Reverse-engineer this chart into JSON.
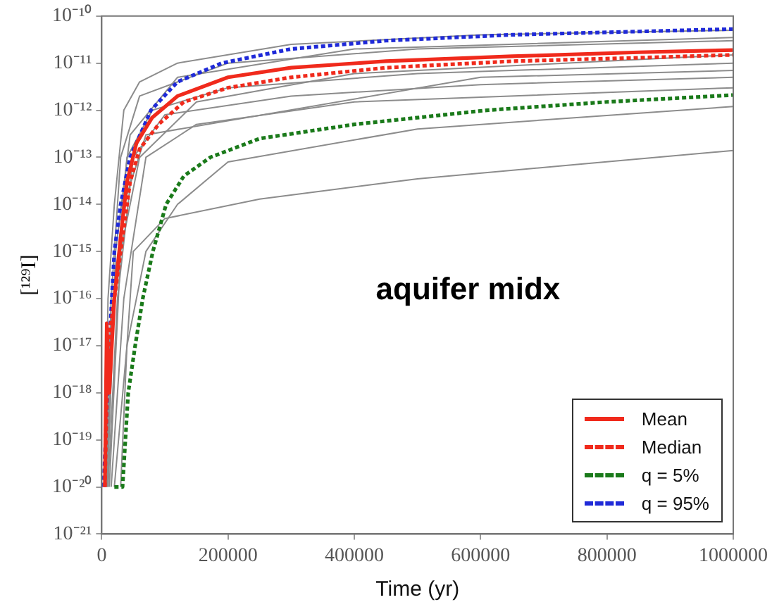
{
  "chart_data": {
    "type": "line",
    "xlabel": "Time (yr)",
    "ylabel": "[¹²⁹I]",
    "annotations": [
      "aquifer midx"
    ],
    "log": "y",
    "grid": false,
    "legend": "bottom right",
    "xlim": [
      0,
      1000000
    ],
    "xticks": [
      0,
      200000,
      400000,
      600000,
      800000,
      1000000
    ],
    "ylim": [
      1e-21,
      1e-10
    ],
    "yticks": [
      {
        "value": 1e-21,
        "label": "10⁻²¹"
      },
      {
        "value": 1e-20,
        "label": "10⁻²⁰"
      },
      {
        "value": 1e-19,
        "label": "10⁻¹⁹"
      },
      {
        "value": 1e-18,
        "label": "10⁻¹⁸"
      },
      {
        "value": 1e-17,
        "label": "10⁻¹⁷"
      },
      {
        "value": 1e-16,
        "label": "10⁻¹⁶"
      },
      {
        "value": 1e-15,
        "label": "10⁻¹⁵"
      },
      {
        "value": 1e-14,
        "label": "10⁻¹⁴"
      },
      {
        "value": 1e-13,
        "label": "10⁻¹³"
      },
      {
        "value": 1e-12,
        "label": "10⁻¹²"
      },
      {
        "value": 1e-11,
        "label": "10⁻¹¹"
      },
      {
        "value": 1e-10,
        "label": "10⁻¹⁰"
      }
    ],
    "series": [
      {
        "name": "Mean",
        "color": "#f02a1c",
        "line_style": "solid",
        "x": [
          5000,
          8000,
          12000,
          20000,
          30000,
          40000,
          55000,
          80000,
          120000,
          200000,
          300000,
          450000,
          650000,
          850000,
          1000000
        ],
        "values": [
          1e-20,
          3e-17,
          1e-18,
          1e-16,
          2e-15,
          3e-14,
          2e-13,
          7e-13,
          2e-12,
          5e-12,
          8e-12,
          1.1e-11,
          1.4e-11,
          1.7e-11,
          1.9e-11
        ]
      },
      {
        "name": "Median",
        "color": "#f02a1c",
        "line_style": "dashed",
        "x": [
          5000,
          10000,
          20000,
          30000,
          45000,
          60000,
          90000,
          130000,
          200000,
          300000,
          450000,
          650000,
          850000,
          1000000
        ],
        "values": [
          1e-20,
          1e-17,
          1e-16,
          1e-15,
          3e-14,
          1.5e-13,
          5e-13,
          1.5e-12,
          3e-12,
          5e-12,
          8e-12,
          1.1e-11,
          1.3e-11,
          1.5e-11
        ]
      },
      {
        "name": "q = 5%",
        "color": "#1a7a1a",
        "line_style": "dashed",
        "x": [
          20000,
          33000,
          42000,
          53000,
          65000,
          81000,
          102000,
          130000,
          172000,
          250000,
          400000,
          610000,
          800000,
          1000000
        ],
        "values": [
          1e-20,
          1e-20,
          1e-18,
          1e-17,
          1e-16,
          1e-15,
          1e-14,
          4e-14,
          1e-13,
          2.5e-13,
          5e-13,
          1e-12,
          1.5e-12,
          2.1e-12
        ]
      },
      {
        "name": "q = 95%",
        "color": "#1f2ad8",
        "line_style": "dashed",
        "x": [
          3000,
          12000,
          20000,
          30000,
          45000,
          78000,
          120000,
          190000,
          300000,
          450000,
          650000,
          850000,
          1000000
        ],
        "values": [
          1e-20,
          1e-17,
          1e-15,
          1e-14,
          1e-13,
          1e-12,
          4e-12,
          1e-11,
          2e-11,
          3e-11,
          4e-11,
          4.7e-11,
          5.3e-11
        ]
      },
      {
        "color": "#8c8c8c",
        "line_style": "solid",
        "x": [
          30000,
          40000,
          50000,
          100000,
          250000,
          500000,
          750000,
          1000000
        ],
        "values": [
          1e-20,
          1e-17,
          1e-15,
          5e-15,
          1.3e-14,
          3.5e-14,
          7e-14,
          1.4e-13
        ]
      },
      {
        "color": "#8c8c8c",
        "line_style": "solid",
        "x": [
          5000,
          10000,
          20000,
          35000,
          60000,
          120000,
          300000,
          600000,
          1000000
        ],
        "values": [
          1e-20,
          1e-16,
          1e-14,
          1e-12,
          4e-12,
          1e-11,
          2.5e-11,
          4e-11,
          5e-11
        ]
      },
      {
        "color": "#8c8c8c",
        "line_style": "solid",
        "x": [
          8000,
          20000,
          40000,
          80000,
          200000,
          500000,
          1000000
        ],
        "values": [
          1e-20,
          1e-16,
          1e-13,
          1e-12,
          3e-12,
          6e-12,
          1e-11
        ]
      },
      {
        "color": "#8c8c8c",
        "line_style": "solid",
        "x": [
          10000,
          25000,
          50000,
          100000,
          300000,
          600000,
          1000000
        ],
        "values": [
          1e-20,
          1e-16,
          1e-13,
          8e-13,
          2e-12,
          3.5e-12,
          5e-12
        ]
      },
      {
        "color": "#8c8c8c",
        "line_style": "solid",
        "x": [
          15000,
          35000,
          70000,
          150000,
          400000,
          1000000
        ],
        "values": [
          1e-20,
          1e-16,
          1e-13,
          5e-13,
          1.5e-12,
          3e-12
        ]
      },
      {
        "color": "#8c8c8c",
        "line_style": "solid",
        "x": [
          6000,
          15000,
          30000,
          60000,
          200000,
          500000,
          1000000
        ],
        "values": [
          1e-20,
          1e-16,
          1e-13,
          2e-12,
          1e-11,
          2e-11,
          3e-11
        ]
      },
      {
        "color": "#8c8c8c",
        "line_style": "solid",
        "x": [
          7000,
          18000,
          35000,
          70000,
          600000,
          1000000
        ],
        "values": [
          1e-20,
          1e-16,
          1e-14,
          3e-13,
          5e-12,
          7e-12
        ]
      },
      {
        "color": "#8c8c8c",
        "line_style": "solid",
        "x": [
          20000,
          40000,
          70000,
          120000,
          200000,
          500000,
          1000000
        ],
        "values": [
          1e-20,
          1e-17,
          1e-15,
          1e-14,
          8e-14,
          4e-13,
          1.2e-12
        ]
      },
      {
        "color": "#8c8c8c",
        "line_style": "solid",
        "x": [
          12000,
          30000,
          60000,
          150000,
          400000,
          1000000
        ],
        "values": [
          1e-20,
          1e-15,
          1e-13,
          1.5e-12,
          6e-12,
          1.5e-11
        ]
      },
      {
        "color": "#8c8c8c",
        "line_style": "solid",
        "x": [
          9000,
          22000,
          45000,
          120000,
          400000,
          1000000
        ],
        "values": [
          1e-20,
          1e-15,
          3e-13,
          5e-12,
          2e-11,
          3.5e-11
        ]
      }
    ]
  }
}
